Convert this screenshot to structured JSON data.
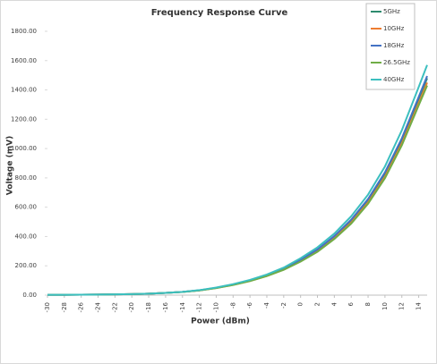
{
  "chart_data": {
    "type": "line",
    "title": "Frequency Response Curve",
    "xlabel": "Power (dBm)",
    "ylabel": "Voltage (mV)",
    "x": [
      -30,
      -28,
      -26,
      -24,
      -22,
      -20,
      -18,
      -16,
      -14,
      -12,
      -10,
      -8,
      -6,
      -4,
      -2,
      0,
      2,
      4,
      6,
      8,
      10,
      12,
      14,
      15
    ],
    "xlim": [
      -30,
      15
    ],
    "xticks": [
      -30,
      -28,
      -26,
      -24,
      -22,
      -20,
      -18,
      -16,
      -14,
      -12,
      -10,
      -8,
      -6,
      -4,
      -2,
      0,
      2,
      4,
      6,
      8,
      10,
      12,
      14
    ],
    "ylim": [
      0,
      1800
    ],
    "yticks": [
      {
        "value": 0,
        "label": "0.00"
      },
      {
        "value": 200,
        "label": "200.00"
      },
      {
        "value": 400,
        "label": "400.00"
      },
      {
        "value": 600,
        "label": "600.00"
      },
      {
        "value": 800,
        "label": "800.00"
      },
      {
        "value": 1000,
        "label": "1000.00"
      },
      {
        "value": 1200,
        "label": "1200.00"
      },
      {
        "value": 1400,
        "label": "1400.00"
      },
      {
        "value": 1600,
        "label": "1600.00"
      },
      {
        "value": 1800,
        "label": "1800.00"
      }
    ],
    "series": [
      {
        "name": "5GHz",
        "color": "#2e8b6e",
        "values": [
          2,
          2.5,
          3,
          4,
          5,
          7,
          10,
          15,
          22,
          33,
          50,
          72,
          100,
          135,
          180,
          240,
          310,
          400,
          510,
          650,
          830,
          1060,
          1340,
          1480
        ]
      },
      {
        "name": "10GHz",
        "color": "#ed7d31",
        "values": [
          2,
          2.5,
          3,
          4,
          5,
          7,
          10,
          15,
          22,
          32,
          49,
          70,
          97,
          131,
          175,
          232,
          300,
          388,
          495,
          632,
          808,
          1035,
          1310,
          1450
        ]
      },
      {
        "name": "18GHz",
        "color": "#4472c4",
        "values": [
          2,
          2.5,
          3,
          4,
          5,
          7,
          10,
          15,
          22,
          33,
          50,
          72,
          100,
          136,
          181,
          242,
          312,
          403,
          515,
          656,
          838,
          1070,
          1352,
          1495
        ]
      },
      {
        "name": "26.5GHz",
        "color": "#70ad47",
        "values": [
          2,
          2.5,
          3,
          4,
          5,
          7,
          10,
          15,
          21,
          32,
          48,
          69,
          96,
          130,
          173,
          229,
          296,
          383,
          488,
          624,
          798,
          1022,
          1295,
          1430
        ]
      },
      {
        "name": "40GHz",
        "color": "#3cbfbf",
        "values": [
          2,
          2.5,
          3,
          4,
          5,
          7,
          10,
          15,
          22,
          34,
          52,
          75,
          104,
          141,
          188,
          252,
          326,
          420,
          538,
          686,
          878,
          1125,
          1420,
          1570
        ]
      }
    ]
  }
}
